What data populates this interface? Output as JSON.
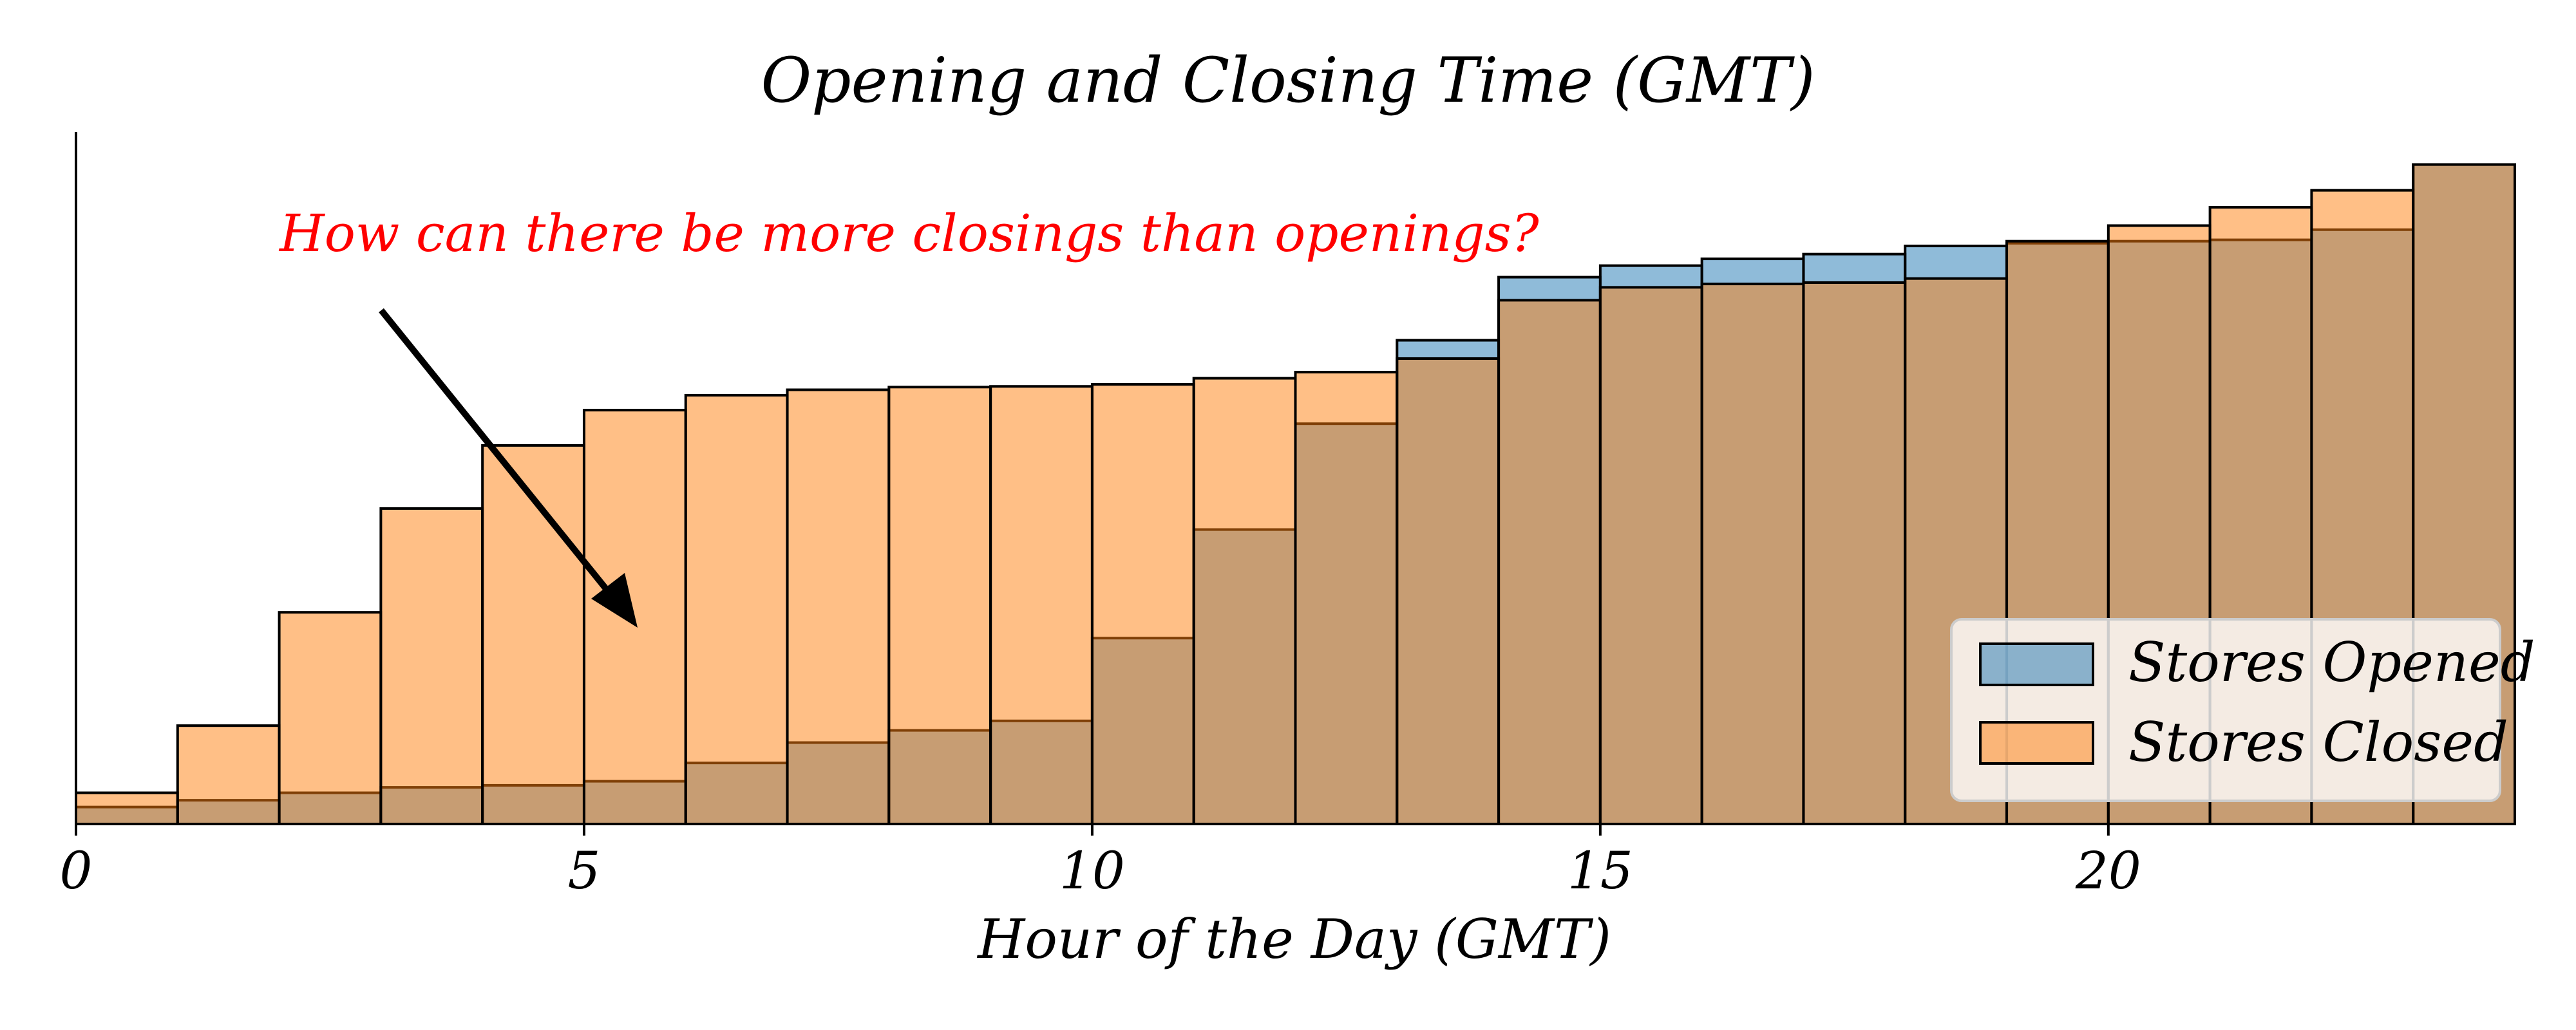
{
  "chart_data": {
    "type": "bar",
    "title": "Opening and Closing Time (GMT)",
    "xlabel": "Hour of the Day (GMT)",
    "ylabel": "",
    "xlim": [
      0,
      24
    ],
    "ylim": [
      0,
      102
    ],
    "x_ticks": [
      0,
      5,
      10,
      15,
      20
    ],
    "y_axis_ticks_shown": false,
    "grid": false,
    "legend_position": "lower-right",
    "bin_starts": [
      0,
      1,
      2,
      3,
      4,
      5,
      6,
      7,
      8,
      9,
      10,
      11,
      12,
      13,
      14,
      15,
      16,
      17,
      18,
      19,
      20,
      21,
      22,
      23
    ],
    "series": [
      {
        "name": "Stores Opened",
        "color": "#1f77b4",
        "values": [
          2.5,
          3.5,
          4.6,
          5.4,
          5.7,
          6.3,
          9.0,
          12.0,
          13.8,
          15.2,
          27.4,
          43.4,
          59.0,
          71.3,
          80.6,
          82.3,
          83.3,
          84.0,
          85.2,
          85.6,
          85.9,
          86.1,
          87.6,
          97.2
        ]
      },
      {
        "name": "Stores Closed",
        "color": "#ff7f0e",
        "values": [
          4.6,
          14.5,
          31.2,
          46.5,
          55.8,
          61.0,
          63.2,
          64.0,
          64.4,
          64.5,
          64.8,
          65.7,
          66.6,
          68.6,
          77.2,
          79.1,
          79.6,
          79.8,
          80.4,
          85.9,
          88.2,
          90.9,
          93.4,
          97.2
        ]
      }
    ],
    "annotation": {
      "text": "How can there be more closings than openings?",
      "color": "#ff0000",
      "arrow_color": "#000000"
    }
  }
}
